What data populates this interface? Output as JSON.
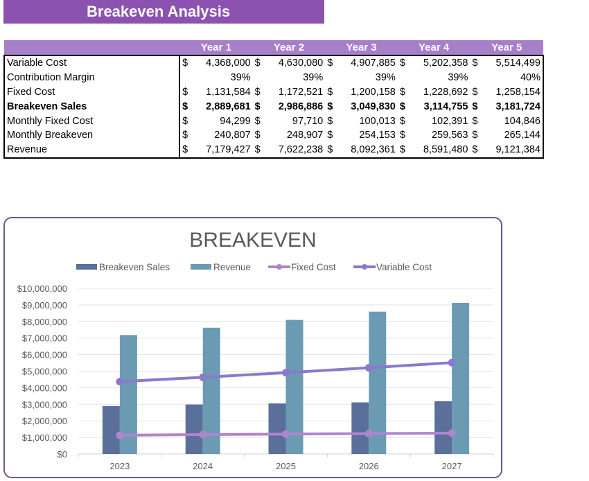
{
  "banner": {
    "title": "Breakeven Analysis"
  },
  "table": {
    "headers": [
      "",
      "Year 1",
      "Year 2",
      "Year 3",
      "Year 4",
      "Year 5"
    ],
    "rows": [
      {
        "label": "Variable Cost",
        "type": "money",
        "values": [
          "4,368,000",
          "4,630,080",
          "4,907,885",
          "5,202,358",
          "5,514,499"
        ]
      },
      {
        "label": "Contribution Margin",
        "type": "pct",
        "values": [
          "39%",
          "39%",
          "39%",
          "39%",
          "40%"
        ]
      },
      {
        "label": "Fixed Cost",
        "type": "money",
        "values": [
          "1,131,584",
          "1,172,521",
          "1,200,158",
          "1,228,692",
          "1,258,154"
        ]
      },
      {
        "label": "Breakeven Sales",
        "type": "money",
        "bold": true,
        "values": [
          "2,889,681",
          "2,986,886",
          "3,049,830",
          "3,114,755",
          "3,181,724"
        ]
      },
      {
        "label": "Monthly Fixed Cost",
        "type": "money",
        "values": [
          "94,299",
          "97,710",
          "100,013",
          "102,391",
          "104,846"
        ]
      },
      {
        "label": "Monthly Breakeven",
        "type": "money",
        "values": [
          "240,807",
          "248,907",
          "254,153",
          "259,563",
          "265,144"
        ]
      },
      {
        "label": "Revenue",
        "type": "money",
        "values": [
          "7,179,427",
          "7,622,238",
          "8,092,361",
          "8,591,480",
          "9,121,384"
        ]
      }
    ],
    "currency": "$"
  },
  "chart_data": {
    "type": "bar",
    "title": "BREAKEVEN",
    "categories": [
      "2023",
      "2024",
      "2025",
      "2026",
      "2027"
    ],
    "ylim": [
      0,
      10000000
    ],
    "yticks": [
      "$0",
      "$1,000,000",
      "$2,000,000",
      "$3,000,000",
      "$4,000,000",
      "$5,000,000",
      "$6,000,000",
      "$7,000,000",
      "$8,000,000",
      "$9,000,000",
      "$10,000,000"
    ],
    "grid": true,
    "legend": "top",
    "series": [
      {
        "name": "Breakeven Sales",
        "kind": "bar",
        "color": "#5a6f9a",
        "values": [
          2889681,
          2986886,
          3049830,
          3114755,
          3181724
        ]
      },
      {
        "name": "Revenue",
        "kind": "bar",
        "color": "#6a9bb3",
        "values": [
          7179427,
          7622238,
          8092361,
          8591480,
          9121384
        ]
      },
      {
        "name": "Fixed Cost",
        "kind": "line",
        "color": "#b084cf",
        "values": [
          1131584,
          1172521,
          1200158,
          1228692,
          1258154
        ]
      },
      {
        "name": "Variable Cost",
        "kind": "line",
        "color": "#8c79cc",
        "values": [
          4368000,
          4630080,
          4907885,
          5202358,
          5514499
        ]
      }
    ]
  }
}
